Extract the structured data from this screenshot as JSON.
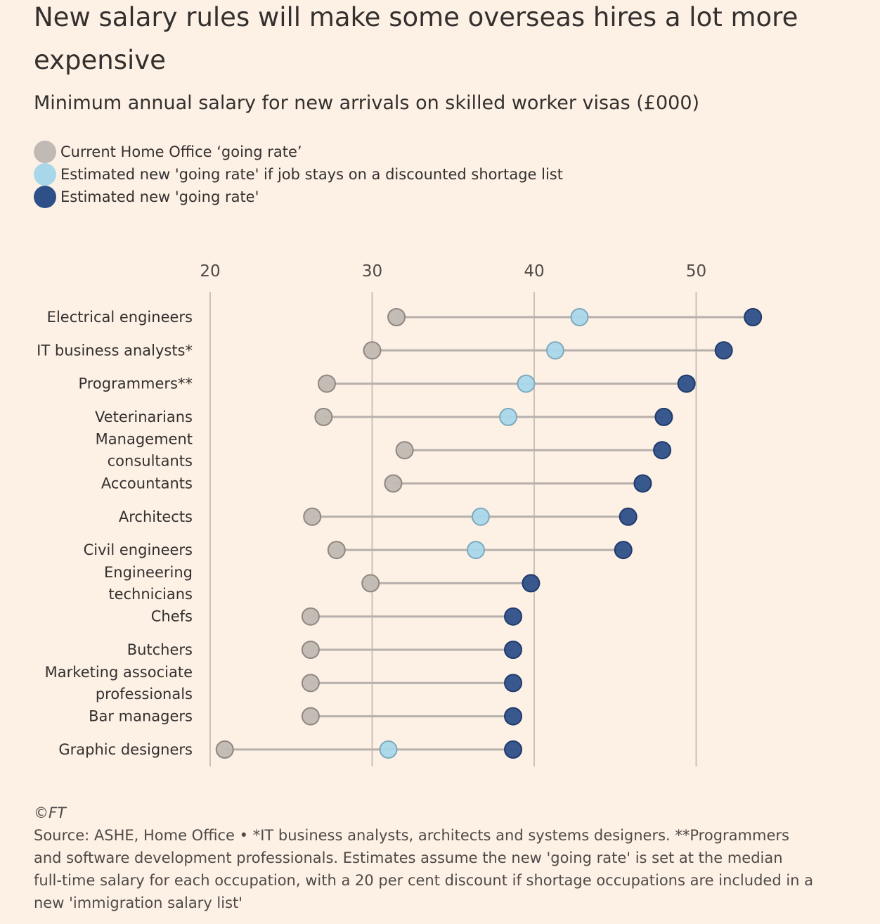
{
  "header": {
    "title": "New salary rules will make some overseas hires a lot more expensive",
    "subtitle": "Minimum annual salary for new arrivals on skilled worker visas (£000)"
  },
  "legend": [
    {
      "label": "Current Home Office ‘going rate’",
      "color": "#c1b9b3"
    },
    {
      "label": "Estimated new 'going rate' if job stays on a discounted shortage list",
      "color": "#a9d7ea"
    },
    {
      "label": "Estimated new 'going rate'",
      "color": "#2e5089"
    }
  ],
  "chart_data": {
    "type": "dot-range",
    "title": "New salary rules will make some overseas hires a lot more expensive",
    "subtitle": "Minimum annual salary for new arrivals on skilled worker visas (£000)",
    "xlim": [
      20,
      55
    ],
    "xticks": [
      20,
      30,
      40,
      50
    ],
    "grid": true,
    "legend_position": "top-left",
    "categories": [
      [
        "Electrical engineers"
      ],
      [
        "IT business analysts*"
      ],
      [
        "Programmers**"
      ],
      [
        "Veterinarians"
      ],
      [
        "Management",
        "consultants"
      ],
      [
        "Accountants"
      ],
      [
        "Architects"
      ],
      [
        "Civil engineers"
      ],
      [
        "Engineering",
        "technicians"
      ],
      [
        "Chefs"
      ],
      [
        "Butchers"
      ],
      [
        "Marketing associate",
        "professionals"
      ],
      [
        "Bar managers"
      ],
      [
        "Graphic designers"
      ]
    ],
    "series": [
      {
        "name": "Current Home Office ‘going rate’",
        "color": "#c1b9b3",
        "values": [
          31.5,
          30.0,
          27.2,
          27.0,
          32.0,
          31.3,
          26.3,
          27.8,
          29.9,
          26.2,
          26.2,
          26.2,
          26.2,
          20.9
        ]
      },
      {
        "name": "Estimated new 'going rate' if job stays on a discounted shortage list",
        "color": "#a9d7ea",
        "values": [
          42.8,
          41.3,
          39.5,
          38.4,
          null,
          null,
          36.7,
          36.4,
          null,
          null,
          null,
          null,
          null,
          31.0
        ]
      },
      {
        "name": "Estimated new 'going rate'",
        "color": "#2e5089",
        "values": [
          53.5,
          51.7,
          49.4,
          48.0,
          47.9,
          46.7,
          45.8,
          45.5,
          39.8,
          38.7,
          38.7,
          38.7,
          38.7,
          38.7
        ]
      }
    ]
  },
  "footer": {
    "credit": "©FT",
    "source": "Source: ASHE, Home Office • *IT business analysts, architects and systems designers. **Programmers and software development professionals. Estimates assume the new 'going rate' is set at the median full-time salary for each occupation, with a 20 per cent discount if shortage occupations are included in a new 'immigration salary list'"
  }
}
